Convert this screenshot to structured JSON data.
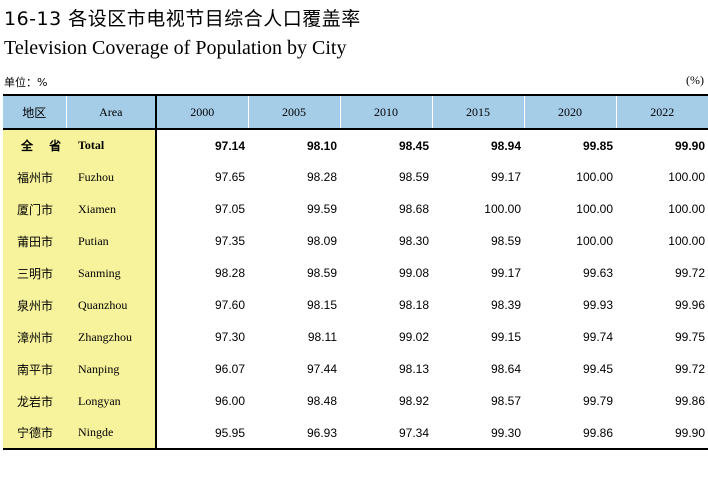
{
  "header": {
    "title_zh": "16-13  各设区市电视节目综合人口覆盖率",
    "title_en": "Television Coverage of Population by City",
    "unit_left": "单位：%",
    "unit_right": "(%)"
  },
  "table": {
    "columns": {
      "area_zh": "地区",
      "area_en": "Area",
      "years": [
        "2000",
        "2005",
        "2010",
        "2015",
        "2020",
        "2022"
      ]
    },
    "rows": [
      {
        "zh": "全 省",
        "en": "Total",
        "values": [
          "97.14",
          "98.10",
          "98.45",
          "98.94",
          "99.85",
          "99.90"
        ]
      },
      {
        "zh": "福州市",
        "en": "Fuzhou",
        "values": [
          "97.65",
          "98.28",
          "98.59",
          "99.17",
          "100.00",
          "100.00"
        ]
      },
      {
        "zh": "厦门市",
        "en": "Xiamen",
        "values": [
          "97.05",
          "99.59",
          "98.68",
          "100.00",
          "100.00",
          "100.00"
        ]
      },
      {
        "zh": "莆田市",
        "en": "Putian",
        "values": [
          "97.35",
          "98.09",
          "98.30",
          "98.59",
          "100.00",
          "100.00"
        ]
      },
      {
        "zh": "三明市",
        "en": "Sanming",
        "values": [
          "98.28",
          "98.59",
          "99.08",
          "99.17",
          "99.63",
          "99.72"
        ]
      },
      {
        "zh": "泉州市",
        "en": "Quanzhou",
        "values": [
          "97.60",
          "98.15",
          "98.18",
          "98.39",
          "99.93",
          "99.96"
        ]
      },
      {
        "zh": "漳州市",
        "en": "Zhangzhou",
        "values": [
          "97.30",
          "98.11",
          "99.02",
          "99.15",
          "99.74",
          "99.75"
        ]
      },
      {
        "zh": "南平市",
        "en": "Nanping",
        "values": [
          "96.07",
          "97.44",
          "98.13",
          "98.64",
          "99.45",
          "99.72"
        ]
      },
      {
        "zh": "龙岩市",
        "en": "Longyan",
        "values": [
          "96.00",
          "98.48",
          "98.92",
          "98.57",
          "99.79",
          "99.86"
        ]
      },
      {
        "zh": "宁德市",
        "en": "Ningde",
        "values": [
          "95.95",
          "96.93",
          "97.34",
          "99.30",
          "99.86",
          "99.90"
        ]
      }
    ]
  }
}
